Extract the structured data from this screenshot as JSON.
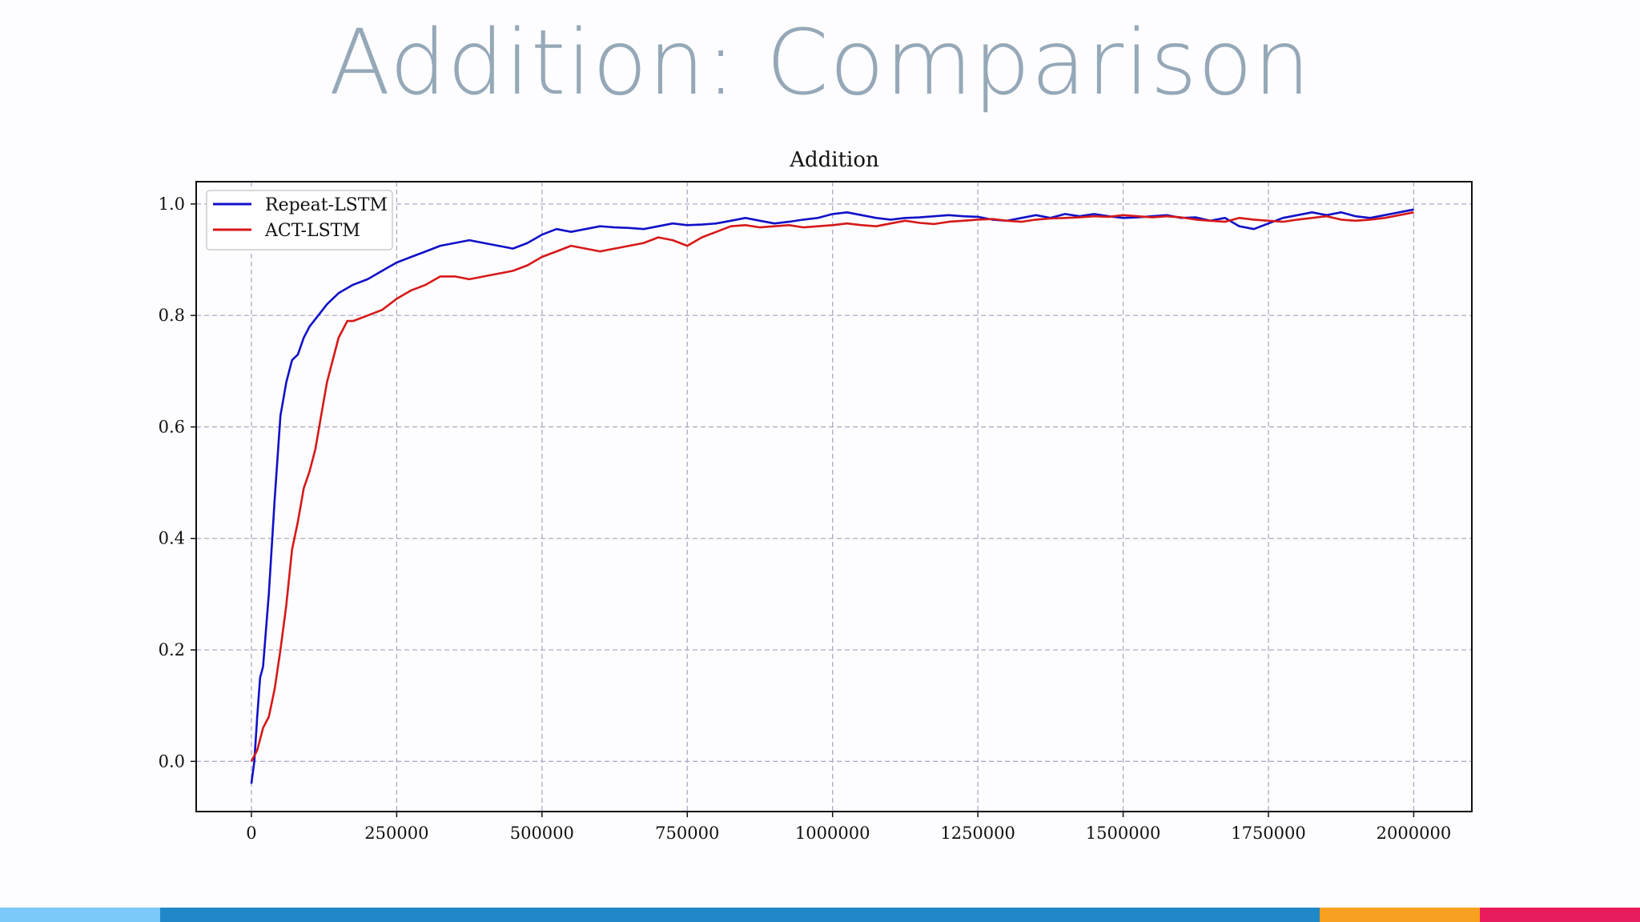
{
  "slide": {
    "title": "Addition: Comparison"
  },
  "chart_data": {
    "type": "line",
    "title": "Addition",
    "xlabel": "",
    "ylabel": "",
    "xlim": [
      -95000,
      2100000
    ],
    "ylim": [
      -0.09,
      1.04
    ],
    "xticks": [
      0,
      250000,
      500000,
      750000,
      1000000,
      1250000,
      1500000,
      1750000,
      2000000
    ],
    "xtick_labels": [
      "0",
      "250000",
      "500000",
      "750000",
      "1000000",
      "1250000",
      "1500000",
      "1750000",
      "2000000"
    ],
    "yticks": [
      0.0,
      0.2,
      0.4,
      0.6,
      0.8,
      1.0
    ],
    "ytick_labels": [
      "0.0",
      "0.2",
      "0.4",
      "0.6",
      "0.8",
      "1.0"
    ],
    "grid": true,
    "legend_position": "top-left",
    "series": [
      {
        "name": "Repeat-LSTM",
        "color": "#1010c8",
        "x": [
          0,
          5000,
          10000,
          15000,
          20000,
          30000,
          40000,
          50000,
          60000,
          70000,
          80000,
          90000,
          100000,
          115000,
          130000,
          150000,
          175000,
          200000,
          225000,
          250000,
          275000,
          300000,
          325000,
          350000,
          375000,
          400000,
          425000,
          450000,
          475000,
          500000,
          525000,
          550000,
          575000,
          600000,
          625000,
          650000,
          675000,
          700000,
          725000,
          750000,
          775000,
          800000,
          825000,
          850000,
          875000,
          900000,
          925000,
          950000,
          975000,
          1000000,
          1025000,
          1050000,
          1075000,
          1100000,
          1125000,
          1150000,
          1175000,
          1200000,
          1225000,
          1250000,
          1275000,
          1300000,
          1325000,
          1350000,
          1375000,
          1400000,
          1425000,
          1450000,
          1475000,
          1500000,
          1525000,
          1550000,
          1575000,
          1600000,
          1625000,
          1650000,
          1675000,
          1700000,
          1725000,
          1750000,
          1775000,
          1800000,
          1825000,
          1850000,
          1875000,
          1900000,
          1925000,
          1950000,
          1975000,
          2000000
        ],
        "y": [
          -0.04,
          0.0,
          0.08,
          0.15,
          0.17,
          0.3,
          0.47,
          0.62,
          0.68,
          0.72,
          0.73,
          0.76,
          0.78,
          0.8,
          0.82,
          0.84,
          0.855,
          0.865,
          0.88,
          0.895,
          0.905,
          0.915,
          0.925,
          0.93,
          0.935,
          0.93,
          0.925,
          0.92,
          0.93,
          0.945,
          0.955,
          0.95,
          0.955,
          0.96,
          0.958,
          0.957,
          0.955,
          0.96,
          0.965,
          0.962,
          0.963,
          0.965,
          0.97,
          0.975,
          0.97,
          0.965,
          0.968,
          0.972,
          0.975,
          0.982,
          0.985,
          0.98,
          0.975,
          0.972,
          0.975,
          0.976,
          0.978,
          0.98,
          0.978,
          0.977,
          0.972,
          0.97,
          0.975,
          0.98,
          0.975,
          0.982,
          0.978,
          0.982,
          0.978,
          0.975,
          0.976,
          0.978,
          0.98,
          0.975,
          0.976,
          0.97,
          0.975,
          0.96,
          0.955,
          0.965,
          0.975,
          0.98,
          0.985,
          0.98,
          0.985,
          0.978,
          0.975,
          0.98,
          0.985,
          0.99
        ]
      },
      {
        "name": "ACT-LSTM",
        "color": "#d61818",
        "x": [
          0,
          10000,
          20000,
          30000,
          40000,
          50000,
          60000,
          70000,
          80000,
          90000,
          100000,
          110000,
          120000,
          130000,
          150000,
          165000,
          175000,
          200000,
          225000,
          250000,
          275000,
          300000,
          325000,
          350000,
          375000,
          400000,
          425000,
          450000,
          475000,
          500000,
          525000,
          550000,
          575000,
          600000,
          625000,
          650000,
          675000,
          700000,
          725000,
          750000,
          775000,
          800000,
          825000,
          850000,
          875000,
          900000,
          925000,
          950000,
          975000,
          1000000,
          1025000,
          1050000,
          1075000,
          1100000,
          1125000,
          1150000,
          1175000,
          1200000,
          1225000,
          1250000,
          1275000,
          1300000,
          1325000,
          1350000,
          1375000,
          1400000,
          1425000,
          1450000,
          1475000,
          1500000,
          1525000,
          1550000,
          1575000,
          1600000,
          1625000,
          1650000,
          1675000,
          1700000,
          1725000,
          1750000,
          1775000,
          1800000,
          1825000,
          1850000,
          1875000,
          1900000,
          1925000,
          1950000,
          1975000,
          2000000
        ],
        "y": [
          0.0,
          0.02,
          0.06,
          0.08,
          0.13,
          0.2,
          0.28,
          0.38,
          0.43,
          0.49,
          0.52,
          0.56,
          0.62,
          0.68,
          0.76,
          0.79,
          0.79,
          0.8,
          0.81,
          0.83,
          0.845,
          0.855,
          0.87,
          0.87,
          0.865,
          0.87,
          0.875,
          0.88,
          0.89,
          0.905,
          0.915,
          0.925,
          0.92,
          0.915,
          0.92,
          0.925,
          0.93,
          0.94,
          0.935,
          0.925,
          0.94,
          0.95,
          0.96,
          0.962,
          0.958,
          0.96,
          0.962,
          0.958,
          0.96,
          0.962,
          0.965,
          0.962,
          0.96,
          0.965,
          0.97,
          0.966,
          0.964,
          0.968,
          0.97,
          0.972,
          0.973,
          0.97,
          0.968,
          0.972,
          0.974,
          0.975,
          0.976,
          0.978,
          0.977,
          0.98,
          0.978,
          0.976,
          0.978,
          0.976,
          0.972,
          0.97,
          0.968,
          0.975,
          0.972,
          0.97,
          0.968,
          0.972,
          0.975,
          0.978,
          0.972,
          0.97,
          0.972,
          0.975,
          0.98,
          0.985
        ]
      }
    ]
  },
  "colors": {
    "title": "#95a8b8",
    "grid": "#b0a8c8",
    "bar_light_blue": "#7cc8f8",
    "bar_blue": "#2088c8",
    "bar_orange": "#f8a020",
    "bar_red": "#e81c5c"
  }
}
